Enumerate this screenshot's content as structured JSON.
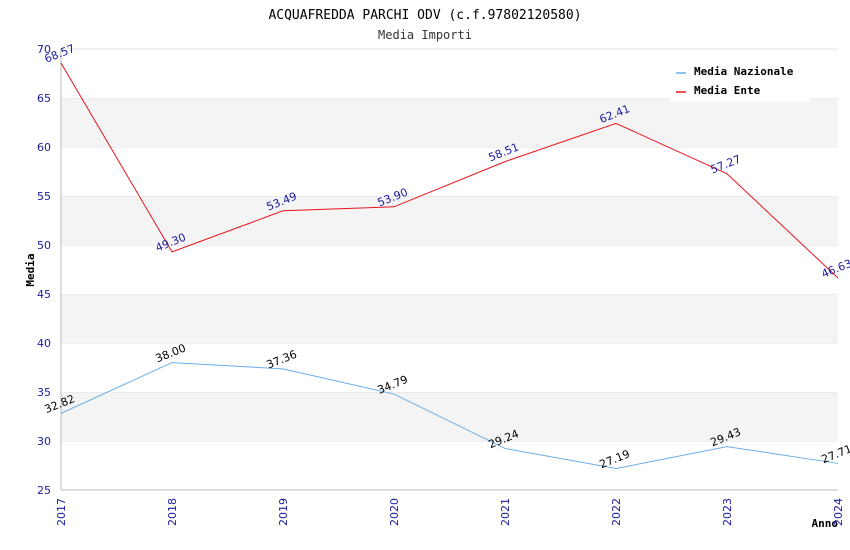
{
  "chart_data": {
    "type": "line",
    "title": "ACQUAFREDDA PARCHI ODV (c.f.97802120580)",
    "subtitle": "Media Importi",
    "xlabel": "Anno",
    "ylabel": "Media",
    "categories": [
      "2017",
      "2018",
      "2019",
      "2020",
      "2021",
      "2022",
      "2023",
      "2024"
    ],
    "ylim": [
      25,
      70
    ],
    "yticks": [
      25,
      30,
      35,
      40,
      45,
      50,
      55,
      60,
      65,
      70
    ],
    "grid": "horizontal alternating bands",
    "legend_position": "top-right",
    "series": [
      {
        "name": "Media Nazionale",
        "color": "#6aaee8",
        "label_color": "#000000",
        "values": [
          32.82,
          38.0,
          37.36,
          34.79,
          29.24,
          27.19,
          29.43,
          27.71
        ],
        "labels": [
          "32.82",
          "38.00",
          "37.36",
          "34.79",
          "29.24",
          "27.19",
          "29.43",
          "27.71"
        ]
      },
      {
        "name": "Media Ente",
        "color": "#e8141e",
        "label_color": "#1a1aa0",
        "values": [
          68.57,
          49.3,
          53.49,
          53.9,
          58.51,
          62.41,
          57.27,
          46.63
        ],
        "labels": [
          "68.57",
          "49.30",
          "53.49",
          "53.90",
          "58.51",
          "62.41",
          "57.27",
          "46.63"
        ]
      }
    ]
  }
}
